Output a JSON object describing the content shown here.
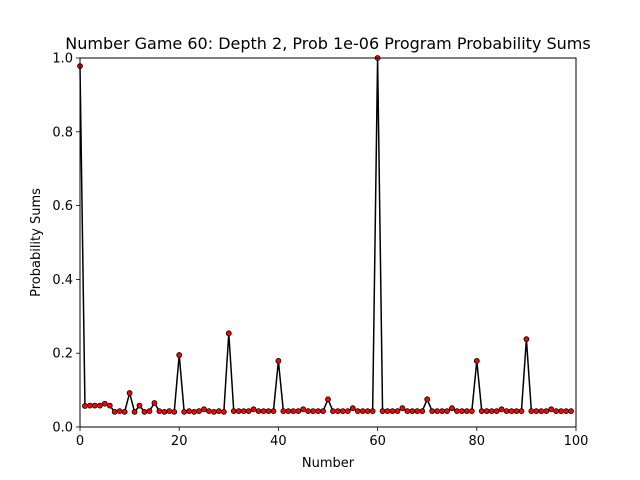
{
  "chart_data": {
    "type": "line",
    "title": "Number Game 60: Depth 2, Prob 1e-06 Program Probability Sums",
    "xlabel": "Number",
    "ylabel": "Probability Sums",
    "xlim": [
      0,
      100
    ],
    "ylim": [
      0,
      1.0
    ],
    "x_ticks": [
      0,
      20,
      40,
      60,
      80,
      100
    ],
    "x_tick_labels": [
      "0",
      "20",
      "40",
      "60",
      "80",
      "100"
    ],
    "y_ticks": [
      0.0,
      0.2,
      0.4,
      0.6,
      0.8,
      1.0
    ],
    "y_tick_labels": [
      "0.0",
      "0.2",
      "0.4",
      "0.6",
      "0.8",
      "1.0"
    ],
    "grid": false,
    "line_color": "#000000",
    "marker_color": "#ff0000",
    "marker_edge_color": "#000000",
    "series": [
      {
        "x": [
          0,
          1,
          2,
          3,
          4,
          5,
          6,
          7,
          8,
          9,
          10,
          11,
          12,
          13,
          14,
          15,
          16,
          17,
          18,
          19,
          20,
          21,
          22,
          23,
          24,
          25,
          26,
          27,
          28,
          29,
          30,
          31,
          32,
          33,
          34,
          35,
          36,
          37,
          38,
          39,
          40,
          41,
          42,
          43,
          44,
          45,
          46,
          47,
          48,
          49,
          50,
          51,
          52,
          53,
          54,
          55,
          56,
          57,
          58,
          59,
          60,
          61,
          62,
          63,
          64,
          65,
          66,
          67,
          68,
          69,
          70,
          71,
          72,
          73,
          74,
          75,
          76,
          77,
          78,
          79,
          80,
          81,
          82,
          83,
          84,
          85,
          86,
          87,
          88,
          89,
          90,
          91,
          92,
          93,
          94,
          95,
          96,
          97,
          98,
          99
        ],
        "values": [
          0.978,
          0.057,
          0.058,
          0.058,
          0.058,
          0.063,
          0.058,
          0.041,
          0.043,
          0.041,
          0.092,
          0.041,
          0.058,
          0.041,
          0.043,
          0.065,
          0.043,
          0.041,
          0.043,
          0.041,
          0.195,
          0.041,
          0.043,
          0.041,
          0.043,
          0.048,
          0.043,
          0.041,
          0.043,
          0.041,
          0.254,
          0.043,
          0.043,
          0.043,
          0.043,
          0.048,
          0.043,
          0.043,
          0.043,
          0.043,
          0.179,
          0.043,
          0.043,
          0.043,
          0.043,
          0.048,
          0.043,
          0.043,
          0.043,
          0.043,
          0.075,
          0.043,
          0.043,
          0.043,
          0.043,
          0.051,
          0.043,
          0.043,
          0.043,
          0.043,
          1.0,
          0.043,
          0.043,
          0.043,
          0.043,
          0.051,
          0.043,
          0.043,
          0.043,
          0.043,
          0.075,
          0.043,
          0.043,
          0.043,
          0.043,
          0.051,
          0.043,
          0.043,
          0.043,
          0.043,
          0.179,
          0.043,
          0.043,
          0.043,
          0.043,
          0.048,
          0.043,
          0.043,
          0.043,
          0.043,
          0.238,
          0.043,
          0.043,
          0.043,
          0.043,
          0.048,
          0.043,
          0.043,
          0.043,
          0.043
        ]
      }
    ]
  }
}
